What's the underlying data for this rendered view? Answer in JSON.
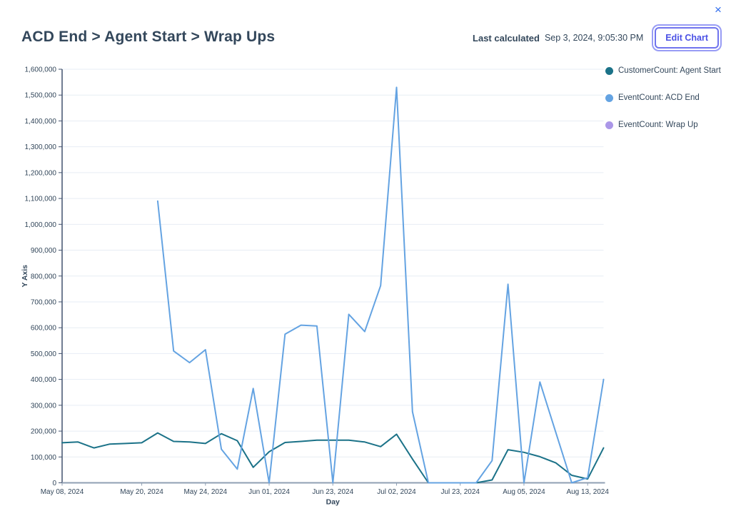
{
  "header": {
    "title": "ACD End > Agent Start > Wrap Ups",
    "last_calculated_label": "Last calculated",
    "last_calculated_value": "Sep 3, 2024, 9:05:30 PM",
    "edit_chart_label": "Edit Chart",
    "close_icon": "×"
  },
  "legend": {
    "items": [
      {
        "label": "CustomerCount: Agent Start",
        "color": "#1b7288"
      },
      {
        "label": "EventCount: ACD End",
        "color": "#64a3e2"
      },
      {
        "label": "EventCount: Wrap Up",
        "color": "#ab97e8"
      }
    ]
  },
  "colors": {
    "accent_purple": "#4b51e5",
    "close_blue": "#2f6ced",
    "text": "#33475b",
    "gridline": "#e7edf4",
    "y_axis_line": "#42526e",
    "x_axis_line": "#8f9fb3"
  },
  "chart_data": {
    "type": "line",
    "title": "",
    "xlabel": "Day",
    "ylabel": "Y Axis",
    "ylim": [
      0,
      1600000
    ],
    "y_tick_interval": 100000,
    "grid": "horizontal",
    "legend_position": "right",
    "x_tick_labels": [
      "May 08, 2024",
      "May 20, 2024",
      "May 24, 2024",
      "Jun 01, 2024",
      "Jun 23, 2024",
      "Jul 02, 2024",
      "Jul 23, 2024",
      "Aug 05, 2024",
      "Aug 13, 2024"
    ],
    "x_tick_indices": [
      0,
      5,
      9,
      13,
      17,
      21,
      25,
      29,
      33
    ],
    "series": [
      {
        "name": "CustomerCount: Agent Start",
        "color": "#1b7288",
        "values": [
          155000,
          158000,
          135000,
          150000,
          152000,
          155000,
          193000,
          160000,
          158000,
          152000,
          190000,
          163000,
          60000,
          120000,
          156000,
          160000,
          165000,
          165000,
          165000,
          158000,
          140000,
          188000,
          92000,
          0,
          0,
          0,
          0,
          11000,
          128000,
          118000,
          101000,
          77000,
          29000,
          15000,
          135000
        ]
      },
      {
        "name": "EventCount: ACD End",
        "color": "#64a3e2",
        "values": [
          null,
          null,
          null,
          null,
          null,
          null,
          1090000,
          510000,
          465000,
          515000,
          130000,
          53000,
          365000,
          0,
          575000,
          610000,
          607000,
          0,
          652000,
          585000,
          763000,
          1530000,
          275000,
          0,
          0,
          0,
          0,
          86000,
          768000,
          0,
          390000,
          195000,
          0,
          20000,
          400000
        ]
      },
      {
        "name": "EventCount: Wrap Up",
        "color": "#ab97e8",
        "values": []
      }
    ]
  }
}
